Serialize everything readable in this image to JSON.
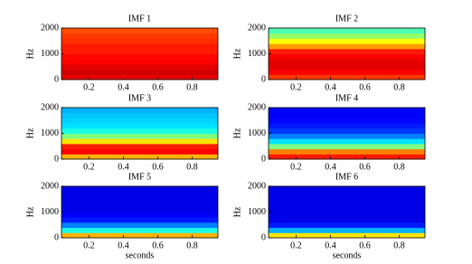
{
  "chart_data": [
    {
      "type": "heatmap",
      "title": "IMF 1",
      "ylabel": "Hz",
      "colormap": "jet",
      "xlim": [
        0.04,
        0.95
      ],
      "ylim": [
        0,
        2000
      ],
      "xticks": [
        0.2,
        0.4,
        0.6,
        0.8
      ],
      "yticks": [
        0,
        1000,
        2000
      ],
      "y_bins": [
        0,
        200,
        400,
        600,
        800,
        1000,
        1200,
        1400,
        1600,
        1800,
        2000
      ],
      "values": [
        0.9,
        0.92,
        0.9,
        0.88,
        0.87,
        0.85,
        0.85,
        0.83,
        0.82,
        0.8
      ]
    },
    {
      "type": "heatmap",
      "title": "IMF 2",
      "ylabel": "Hz",
      "colormap": "jet",
      "xlim": [
        0.04,
        0.95
      ],
      "ylim": [
        0,
        2000
      ],
      "xticks": [
        0.2,
        0.4,
        0.6,
        0.8
      ],
      "yticks": [
        0,
        1000,
        2000
      ],
      "y_bins": [
        0,
        200,
        400,
        600,
        800,
        1000,
        1200,
        1400,
        1600,
        1800,
        2000
      ],
      "values": [
        0.82,
        0.88,
        0.9,
        0.9,
        0.88,
        0.85,
        0.72,
        0.62,
        0.52,
        0.45
      ]
    },
    {
      "type": "heatmap",
      "title": "IMF 3",
      "ylabel": "Hz",
      "colormap": "jet",
      "xlim": [
        0.04,
        0.95
      ],
      "ylim": [
        0,
        2000
      ],
      "xticks": [
        0.2,
        0.4,
        0.6,
        0.8
      ],
      "yticks": [
        0,
        1000,
        2000
      ],
      "y_bins": [
        0,
        200,
        400,
        600,
        800,
        1000,
        1200,
        1400,
        1600,
        1800,
        2000
      ],
      "values": [
        0.7,
        0.88,
        0.85,
        0.65,
        0.5,
        0.4,
        0.35,
        0.33,
        0.32,
        0.3
      ]
    },
    {
      "type": "heatmap",
      "title": "IMF 4",
      "ylabel": "Hz",
      "colormap": "jet",
      "xlim": [
        0.04,
        0.95
      ],
      "ylim": [
        0,
        2000
      ],
      "xticks": [
        0.2,
        0.4,
        0.6,
        0.8
      ],
      "yticks": [
        0,
        1000,
        2000
      ],
      "y_bins": [
        0,
        200,
        400,
        600,
        800,
        1000,
        1200,
        1400,
        1600,
        1800,
        2000
      ],
      "values": [
        0.85,
        0.75,
        0.5,
        0.35,
        0.25,
        0.18,
        0.15,
        0.13,
        0.12,
        0.12
      ]
    },
    {
      "type": "heatmap",
      "title": "IMF 5",
      "ylabel": "Hz",
      "xlabel": "seconds",
      "colormap": "jet",
      "xlim": [
        0.04,
        0.95
      ],
      "ylim": [
        0,
        2000
      ],
      "xticks": [
        0.2,
        0.4,
        0.6,
        0.8
      ],
      "yticks": [
        0,
        1000,
        2000
      ],
      "y_bins": [
        0,
        200,
        400,
        600,
        800,
        1000,
        1200,
        1400,
        1600,
        1800,
        2000
      ],
      "values": [
        0.7,
        0.4,
        0.25,
        0.15,
        0.12,
        0.1,
        0.1,
        0.1,
        0.1,
        0.1
      ]
    },
    {
      "type": "heatmap",
      "title": "IMF 6",
      "ylabel": "Hz",
      "xlabel": "seconds",
      "colormap": "jet",
      "xlim": [
        0.04,
        0.95
      ],
      "ylim": [
        0,
        2000
      ],
      "xticks": [
        0.2,
        0.4,
        0.6,
        0.8
      ],
      "yticks": [
        0,
        1000,
        2000
      ],
      "y_bins": [
        0,
        200,
        400,
        600,
        800,
        1000,
        1200,
        1400,
        1600,
        1800,
        2000
      ],
      "values": [
        0.65,
        0.3,
        0.15,
        0.1,
        0.1,
        0.1,
        0.1,
        0.1,
        0.1,
        0.1
      ]
    }
  ]
}
